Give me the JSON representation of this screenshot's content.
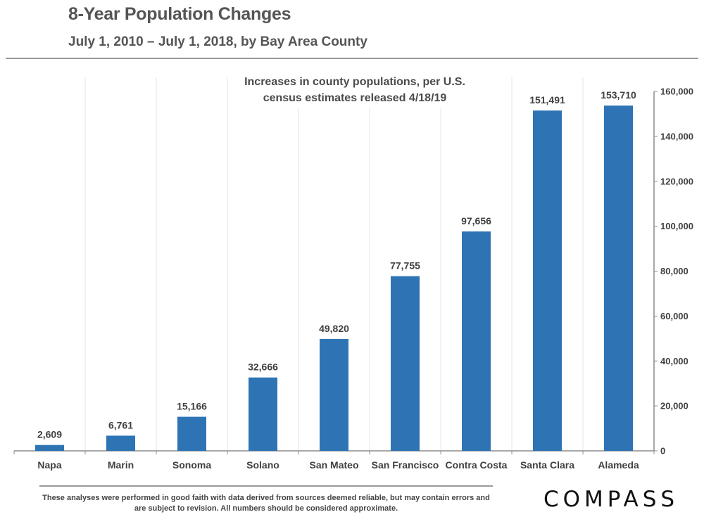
{
  "header": {
    "title": "8-Year Population Changes",
    "subtitle": "July 1, 2010 – July 1, 2018, by Bay Area County"
  },
  "chart_data": {
    "type": "bar",
    "categories": [
      "Napa",
      "Marin",
      "Sonoma",
      "Solano",
      "San Mateo",
      "San Francisco",
      "Contra Costa",
      "Santa Clara",
      "Alameda"
    ],
    "values": [
      2609,
      6761,
      15166,
      32666,
      49820,
      77755,
      97656,
      151491,
      153710
    ],
    "data_labels": [
      "2,609",
      "6,761",
      "15,166",
      "32,666",
      "49,820",
      "77,755",
      "97,656",
      "151,491",
      "153,710"
    ],
    "annotation_lines": [
      "Increases in county populations, per U.S.",
      "census estimates released 4/18/19"
    ],
    "ylim": [
      0,
      160000
    ],
    "y_ticks": [
      "0",
      "20,000",
      "40,000",
      "60,000",
      "80,000",
      "100,000",
      "120,000",
      "140,000",
      "160,000"
    ],
    "y_axis_side": "right",
    "bar_color": "#2E74B5",
    "grid": "vertical separators between categories",
    "legend": "none"
  },
  "footer": {
    "disclaimer": "These analyses were performed in good faith with data derived from sources deemed reliable, but may contain errors and are subject to revision.  All numbers should be considered approximate.",
    "logo_text": "COMPASS"
  }
}
